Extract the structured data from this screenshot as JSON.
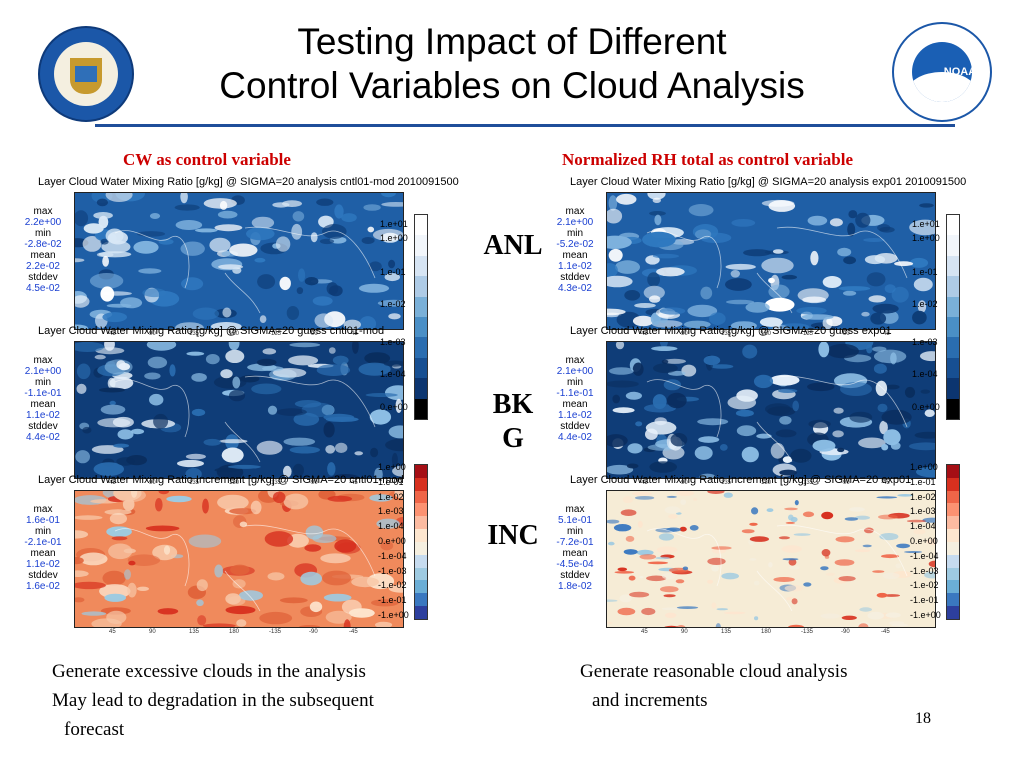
{
  "slide": {
    "title_line1": "Testing Impact of Different",
    "title_line2": "Control Variables on Cloud Analysis",
    "page_number": "18"
  },
  "columns": [
    {
      "header": "CW as control variable",
      "panels": [
        {
          "title": "Layer Cloud Water Mixing Ratio [g/kg] @ SIGMA=20 analysis cntl01-mod 2010091500",
          "max": "2.2e+00",
          "min": "-2.8e-02",
          "mean": "2.2e-02",
          "stddev": "4.5e-02",
          "kind": "analysis"
        },
        {
          "title": "Layer Cloud Water Mixing Ratio [g/kg] @ SIGMA=20 guess cntl01-mod",
          "max": "2.1e+00",
          "min": "-1.1e-01",
          "mean": "1.1e-02",
          "stddev": "4.4e-02",
          "kind": "guess"
        },
        {
          "title": "Layer Cloud Water Mixing Ratio Increment [g/kg] @ SIGMA=20 cntl01-mod",
          "max": "1.6e-01",
          "min": "-2.1e-01",
          "mean": "1.1e-02",
          "stddev": "1.6e-02",
          "kind": "increment_warm"
        }
      ],
      "notes": [
        "Generate excessive clouds in the analysis",
        "May lead to degradation in  the subsequent",
        "forecast"
      ]
    },
    {
      "header": "Normalized RH total as control variable",
      "panels": [
        {
          "title": "Layer Cloud Water Mixing Ratio [g/kg] @ SIGMA=20 analysis exp01 2010091500",
          "max": "2.1e+00",
          "min": "-5.2e-02",
          "mean": "1.1e-02",
          "stddev": "4.3e-02",
          "kind": "analysis"
        },
        {
          "title": "Layer Cloud Water Mixing Ratio [g/kg] @ SIGMA=20 guess exp01",
          "max": "2.1e+00",
          "min": "-1.1e-01",
          "mean": "1.1e-02",
          "stddev": "4.4e-02",
          "kind": "guess"
        },
        {
          "title": "Layer Cloud Water Mixing Ratio Increment [g/kg] @ SIGMA=20 exp01",
          "max": "5.1e-01",
          "min": "-7.2e-01",
          "mean": "-4.5e-04",
          "stddev": "1.8e-02",
          "kind": "increment_mixed"
        }
      ],
      "notes": [
        "Generate reasonable cloud analysis",
        "and increments"
      ]
    }
  ],
  "stat_labels": {
    "max": "max",
    "min": "min",
    "mean": "mean",
    "stddev": "stddev"
  },
  "row_labels": {
    "anl": "ANL",
    "bkg_line1": "BK",
    "bkg_line2": "G",
    "inc": "INC"
  },
  "colorbar_blue": {
    "labels": [
      "1.e+01",
      "1.e+00",
      "1.e-01",
      "1.e-02",
      "1.e-03",
      "1.e-04",
      "0.e+00"
    ],
    "colors": [
      "#ffffff",
      "#f2f6fb",
      "#d6e4f3",
      "#aecbe6",
      "#7ab0d8",
      "#4a8fc6",
      "#2a6db0",
      "#174f92",
      "#0c3570",
      "#000000"
    ]
  },
  "colorbar_div": {
    "labels": [
      "1.e+00",
      "1.e-01",
      "1.e-02",
      "1.e-03",
      "1.e-04",
      "0.e+00",
      "-1.e-04",
      "-1.e-03",
      "-1.e-02",
      "-1.e-01",
      "-1.e+00"
    ],
    "colors": [
      "#a50f15",
      "#d7301f",
      "#ef6548",
      "#fc9272",
      "#fcbba1",
      "#fde6cf",
      "#f5efe0",
      "#c6dbef",
      "#9ecae1",
      "#6baed6",
      "#3a78c0",
      "#2d3f9e"
    ]
  },
  "longitude_ticks": [
    "45",
    "90",
    "135",
    "180",
    "-135",
    "-90",
    "-45"
  ],
  "colors": {
    "subheader": "#cc0000",
    "stat_value": "#1a3fd1",
    "rule": "#1f4e9a"
  }
}
